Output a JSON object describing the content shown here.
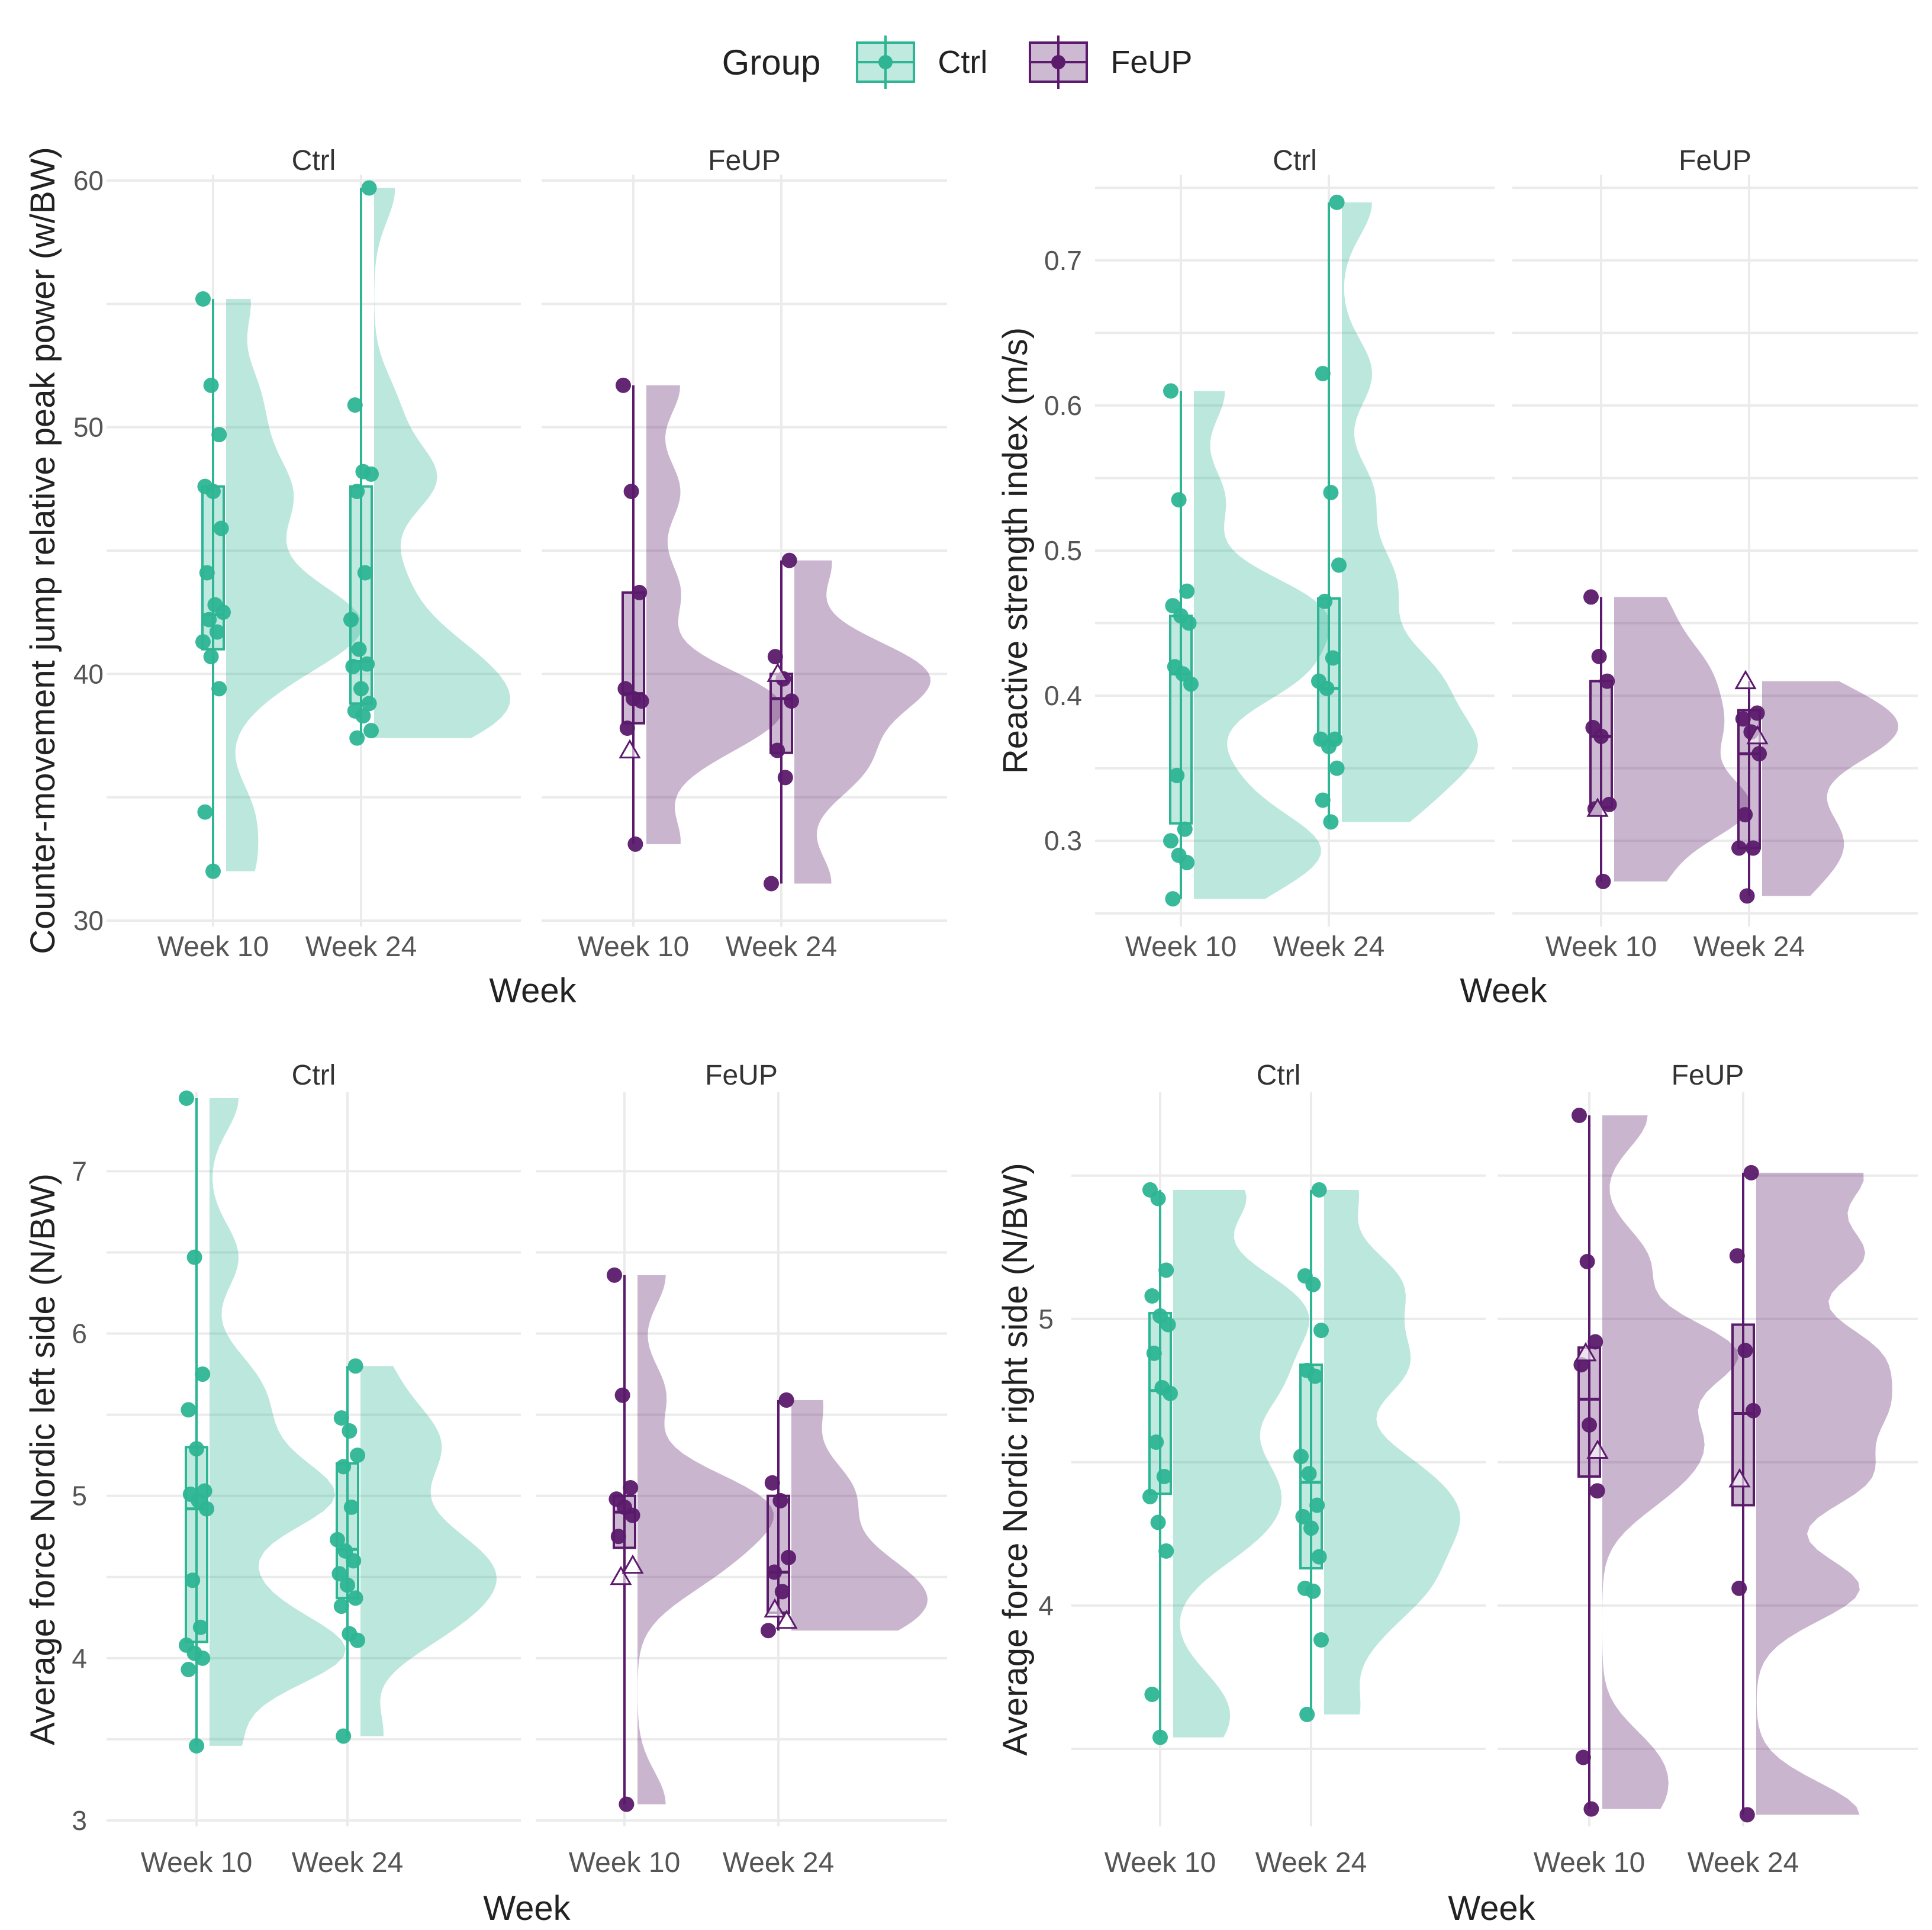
{
  "legend": {
    "title": "Group",
    "items": [
      {
        "label": "Ctrl",
        "color": "#2db594"
      },
      {
        "label": "FeUP",
        "color": "#5b1a6b"
      }
    ]
  },
  "colors": {
    "Ctrl": "#2db594",
    "FeUP": "#5b1a6b",
    "grid": "#ebebeb",
    "text": "#555555"
  },
  "chart_data": [
    {
      "type": "raincloud",
      "id": "cmj",
      "ylabel": "Counter-movement jump relative peak power (w/BW)",
      "xlabel": "Week",
      "ylim": [
        30,
        60
      ],
      "yticks": [
        30,
        40,
        50,
        60
      ],
      "categories": [
        "Week 10",
        "Week 24"
      ],
      "facets": [
        {
          "title": "Ctrl",
          "group": "Ctrl",
          "series": [
            {
              "week": "Week 10",
              "points": [
                55.2,
                51.7,
                49.7,
                47.6,
                47.4,
                45.9,
                44.1,
                42.8,
                42.5,
                42.2,
                41.7,
                41.3,
                40.7,
                39.4,
                34.4,
                32.0
              ],
              "box": [
                41.0,
                42.4,
                47.6
              ],
              "whisk": [
                32.0,
                55.2
              ]
            },
            {
              "week": "Week 24",
              "points": [
                59.7,
                50.9,
                48.2,
                48.1,
                47.4,
                44.1,
                42.2,
                41.0,
                40.4,
                40.3,
                39.4,
                38.8,
                38.5,
                38.3,
                37.7,
                37.4
              ],
              "box": [
                38.8,
                40.5,
                47.6
              ],
              "whisk": [
                37.4,
                59.7
              ]
            }
          ]
        },
        {
          "title": "FeUP",
          "group": "FeUP",
          "series": [
            {
              "week": "Week 10",
              "points": [
                51.7,
                47.4,
                43.3,
                39.4,
                39.0,
                38.9,
                37.8,
                33.1
              ],
              "triangles": [
                36.9
              ],
              "box": [
                38.0,
                39.2,
                43.3
              ],
              "whisk": [
                33.1,
                51.7
              ]
            },
            {
              "week": "Week 24",
              "points": [
                44.6,
                40.7,
                39.8,
                38.9,
                36.9,
                35.8,
                31.5
              ],
              "triangles": [
                40.0
              ],
              "box": [
                36.8,
                39.0,
                40.0
              ],
              "whisk": [
                31.5,
                44.6
              ]
            }
          ]
        }
      ]
    },
    {
      "type": "raincloud",
      "id": "rsi",
      "ylabel": "Reactive strength index (m/s)",
      "xlabel": "Week",
      "ylim": [
        0.245,
        0.755
      ],
      "yticks": [
        0.3,
        0.4,
        0.5,
        0.6,
        0.7
      ],
      "categories": [
        "Week 10",
        "Week 24"
      ],
      "facets": [
        {
          "title": "Ctrl",
          "group": "Ctrl",
          "series": [
            {
              "week": "Week 10",
              "points": [
                0.61,
                0.535,
                0.472,
                0.462,
                0.455,
                0.45,
                0.42,
                0.415,
                0.408,
                0.345,
                0.308,
                0.3,
                0.29,
                0.285,
                0.26
              ],
              "box": [
                0.312,
                0.415,
                0.455
              ],
              "whisk": [
                0.26,
                0.61
              ]
            },
            {
              "week": "Week 24",
              "points": [
                0.74,
                0.622,
                0.54,
                0.49,
                0.465,
                0.426,
                0.41,
                0.405,
                0.37,
                0.37,
                0.365,
                0.35,
                0.328,
                0.313
              ],
              "box": [
                0.368,
                0.405,
                0.467
              ],
              "whisk": [
                0.313,
                0.74
              ]
            }
          ]
        },
        {
          "title": "FeUP",
          "group": "FeUP",
          "series": [
            {
              "week": "Week 10",
              "points": [
                0.468,
                0.427,
                0.41,
                0.378,
                0.372,
                0.325,
                0.322,
                0.272
              ],
              "triangles": [
                0.322
              ],
              "box": [
                0.323,
                0.372,
                0.41
              ],
              "whisk": [
                0.272,
                0.468
              ]
            },
            {
              "week": "Week 24",
              "points": [
                0.388,
                0.384,
                0.375,
                0.36,
                0.318,
                0.295,
                0.295,
                0.262
              ],
              "triangles": [
                0.41,
                0.372
              ],
              "box": [
                0.295,
                0.36,
                0.39
              ],
              "whisk": [
                0.262,
                0.41
              ]
            }
          ]
        }
      ]
    },
    {
      "type": "raincloud",
      "id": "nordic-left",
      "ylabel": "Average force Nordic left side (N/BW)",
      "xlabel": "Week",
      "ylim": [
        3.0,
        7.45
      ],
      "yticks": [
        3,
        4,
        5,
        6,
        7
      ],
      "categories": [
        "Week 10",
        "Week 24"
      ],
      "facets": [
        {
          "title": "Ctrl",
          "group": "Ctrl",
          "series": [
            {
              "week": "Week 10",
              "points": [
                7.45,
                6.47,
                5.75,
                5.53,
                5.29,
                5.03,
                5.01,
                4.97,
                4.92,
                4.48,
                4.19,
                4.08,
                4.03,
                4.0,
                3.93,
                3.46
              ],
              "box": [
                4.1,
                4.92,
                5.3
              ],
              "whisk": [
                3.46,
                7.45
              ]
            },
            {
              "week": "Week 24",
              "points": [
                5.8,
                5.48,
                5.4,
                5.25,
                5.18,
                4.93,
                4.73,
                4.66,
                4.6,
                4.52,
                4.45,
                4.37,
                4.32,
                4.15,
                4.11,
                3.52
              ],
              "box": [
                4.37,
                4.67,
                5.2
              ],
              "whisk": [
                3.52,
                5.8
              ]
            }
          ]
        },
        {
          "title": "FeUP",
          "group": "FeUP",
          "series": [
            {
              "week": "Week 10",
              "points": [
                6.36,
                5.62,
                5.05,
                4.98,
                4.93,
                4.88,
                4.75,
                3.1
              ],
              "triangles": [
                4.5,
                4.57
              ],
              "box": [
                4.68,
                4.9,
                5.0
              ],
              "whisk": [
                3.1,
                6.36
              ]
            },
            {
              "week": "Week 24",
              "points": [
                5.59,
                5.08,
                4.97,
                4.62,
                4.53,
                4.41,
                4.17
              ],
              "triangles": [
                4.3,
                4.23
              ],
              "box": [
                4.28,
                4.53,
                5.0
              ],
              "whisk": [
                4.17,
                5.59
              ]
            }
          ]
        }
      ]
    },
    {
      "type": "raincloud",
      "id": "nordic-right",
      "ylabel": "Average force Nordic right side (N/BW)",
      "xlabel": "Week",
      "ylim": [
        3.25,
        5.77
      ],
      "yticks": [
        4,
        5
      ],
      "categories": [
        "Week 10",
        "Week 24"
      ],
      "facets": [
        {
          "title": "Ctrl",
          "group": "Ctrl",
          "series": [
            {
              "week": "Week 10",
              "points": [
                5.45,
                5.42,
                5.17,
                5.08,
                5.01,
                4.98,
                4.88,
                4.76,
                4.74,
                4.57,
                4.45,
                4.38,
                4.29,
                4.19,
                3.69,
                3.54
              ],
              "box": [
                4.39,
                4.75,
                5.02
              ],
              "whisk": [
                3.54,
                5.45
              ]
            },
            {
              "week": "Week 24",
              "points": [
                5.45,
                5.15,
                5.12,
                4.96,
                4.82,
                4.8,
                4.52,
                4.46,
                4.35,
                4.31,
                4.27,
                4.17,
                4.06,
                4.05,
                3.88,
                3.62
              ],
              "box": [
                4.13,
                4.43,
                4.84
              ],
              "whisk": [
                3.62,
                5.45
              ]
            }
          ]
        },
        {
          "title": "FeUP",
          "group": "FeUP",
          "series": [
            {
              "week": "Week 10",
              "points": [
                5.71,
                5.2,
                4.92,
                4.84,
                4.63,
                4.4,
                3.47,
                3.29
              ],
              "triangles": [
                4.88,
                4.54
              ],
              "box": [
                4.45,
                4.72,
                4.9
              ],
              "whisk": [
                3.29,
                5.71
              ]
            },
            {
              "week": "Week 24",
              "points": [
                5.51,
                5.22,
                4.89,
                4.68,
                4.06,
                3.27
              ],
              "triangles": [
                4.44
              ],
              "box": [
                4.35,
                4.67,
                4.98
              ],
              "whisk": [
                3.27,
                5.51
              ]
            }
          ]
        }
      ]
    }
  ]
}
